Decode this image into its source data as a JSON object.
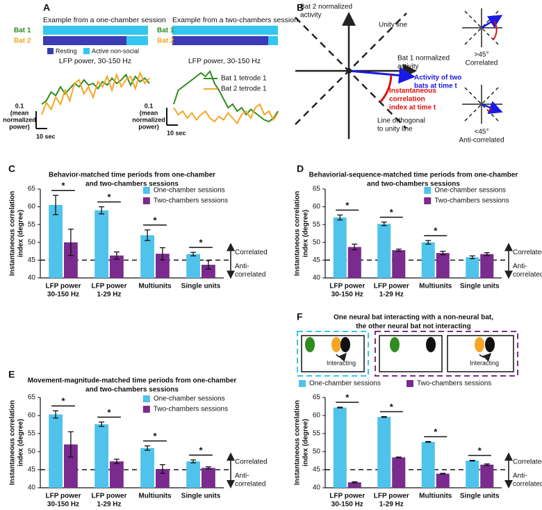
{
  "panel_a": {
    "label": "A",
    "titles": [
      "Example from a one-chamber session",
      "Example from a two-chambers session"
    ],
    "rows": [
      "Bat 1",
      "Bat 2"
    ],
    "legend": [
      "Resting",
      "Active non-social"
    ]
  },
  "panel_b": {
    "label": "B",
    "y_axis": [
      "Bat 2 normalized",
      "activity"
    ],
    "unity": "Unity line",
    "x_axis": [
      "Bat 1 normalized",
      "activity"
    ],
    "vector": [
      "Activity of two",
      "bats at time t"
    ],
    "index": [
      "Instantaneous",
      "correlation",
      "index at time t"
    ],
    "orthogonal": [
      "Line orthogonal",
      "to unity line"
    ],
    "insets": [
      {
        "angle": ">45°",
        "label": "Correlated"
      },
      {
        "angle": "<45°",
        "label": "Anti-correlated"
      }
    ]
  },
  "panel_f_illustration": {
    "labels": [
      "Interacting",
      "Interacting"
    ]
  },
  "chart_data": [
    {
      "type": "line",
      "title": "LFP power, 30-150 Hz",
      "scale_bar": {
        "value": 0.1,
        "label": "0.1",
        "unit": [
          "(mean",
          "normalized",
          "power)"
        ]
      },
      "time_scale": "10 sec",
      "series": [
        {
          "color": "#2e8b1e",
          "values": [
            0.08,
            0.1,
            0.15,
            0.13,
            0.18,
            0.14,
            0.17,
            0.2,
            0.18,
            0.22,
            0.19,
            0.2,
            0.17,
            0.21,
            0.19,
            0.23,
            0.2,
            0.22,
            0.25,
            0.19,
            0.24,
            0.21,
            0.23,
            0.2
          ]
        },
        {
          "color": "#f5a623",
          "values": [
            0.02,
            0.09,
            0.05,
            0.12,
            0.08,
            0.16,
            0.1,
            0.2,
            0.22,
            0.14,
            0.18,
            0.12,
            0.21,
            0.18,
            0.24,
            0.16,
            0.25,
            0.18,
            0.22,
            0.24,
            0.17,
            0.26,
            0.2,
            0.23
          ]
        }
      ]
    },
    {
      "type": "line",
      "title": "LFP power, 30-150 Hz",
      "scale_bar": {
        "value": 0.1,
        "label": "0.1",
        "unit": [
          "(mean",
          "normalized",
          "power)"
        ]
      },
      "time_scale": "10 sec",
      "series": [
        {
          "name": "Bat 1 tetrode 1",
          "color": "#2e8b1e",
          "values": [
            0.14,
            0.22,
            0.24,
            0.26,
            0.28,
            0.3,
            0.32,
            0.3,
            0.33,
            0.26,
            0.22,
            0.17,
            0.12,
            0.14,
            0.1,
            0.12,
            0.08,
            0.11,
            0.09,
            0.07,
            0.05,
            0.04,
            0.06,
            0.1
          ]
        },
        {
          "name": "Bat 2 tetrode 1",
          "color": "#f5a623",
          "values": [
            0.12,
            0.08,
            0.1,
            0.06,
            0.09,
            0.05,
            0.08,
            0.1,
            0.06,
            0.04,
            0.07,
            0.05,
            0.09,
            0.06,
            0.03,
            0.08,
            0.1,
            0.06,
            0.12,
            0.14,
            0.08,
            0.1,
            0.05,
            0.09
          ]
        }
      ]
    },
    {
      "type": "bar",
      "panel": "C",
      "title": [
        "Behavior-matched time periods from one-chamber",
        "and two-chambers sessions"
      ],
      "y_label": [
        "Instantaneous correlation",
        "index (degree)"
      ],
      "ylim": [
        40,
        65
      ],
      "yticks": [
        40,
        45,
        50,
        55,
        60,
        65
      ],
      "legend": "upper right",
      "categories": [
        [
          "LFP power",
          "30-150 Hz"
        ],
        [
          "LFP power",
          "1-29 Hz"
        ],
        [
          "Multiunits"
        ],
        [
          "Single units"
        ]
      ],
      "series": [
        {
          "name": "One-chamber sessions",
          "color": "#4fc3ec",
          "values": [
            60.5,
            59,
            52,
            46.7
          ],
          "errors": [
            2.7,
            1.0,
            1.5,
            0.5
          ]
        },
        {
          "name": "Two-chambers sessions",
          "color": "#7b2a8e",
          "values": [
            50,
            46.3,
            46.8,
            43.7
          ],
          "errors": [
            3.7,
            1.0,
            1.7,
            1.2
          ]
        }
      ],
      "significance": [
        "*",
        "*",
        "*",
        "*"
      ],
      "reference_line": 45,
      "correlated_label": "Correlated",
      "anti_correlated_label": [
        "Anti-",
        "correlated"
      ]
    },
    {
      "type": "bar",
      "panel": "D",
      "title": [
        "Behaviorial-sequence-matched time periods from one-chamber",
        "and two-chambers sessions"
      ],
      "y_label": [
        "Instantaneous correlation",
        "index (degree)"
      ],
      "ylim": [
        40,
        65
      ],
      "yticks": [
        40,
        45,
        50,
        55,
        60,
        65
      ],
      "legend": "upper right",
      "categories": [
        [
          "LFP power",
          "30-150 Hz"
        ],
        [
          "LFP power",
          "1-29 Hz"
        ],
        [
          "Multiunits"
        ],
        [
          "Single units"
        ]
      ],
      "series": [
        {
          "name": "One-chamber sessions",
          "color": "#4fc3ec",
          "values": [
            57,
            55.2,
            50,
            45.8
          ],
          "errors": [
            0.7,
            0.5,
            0.5,
            0.4
          ]
        },
        {
          "name": "Two-chambers sessions",
          "color": "#7b2a8e",
          "values": [
            48.7,
            47.8,
            47,
            46.7
          ],
          "errors": [
            0.8,
            0.3,
            0.5,
            0.4
          ]
        }
      ],
      "significance": [
        "*",
        "*",
        "*",
        null
      ],
      "reference_line": 45,
      "correlated_label": "Correlated",
      "anti_correlated_label": [
        "Anti-",
        "correlated"
      ]
    },
    {
      "type": "bar",
      "panel": "E",
      "title": [
        "Movement-magnitude-matched time periods from one-chamber",
        "and two-chambers sessions"
      ],
      "y_label": [
        "Instantaneous correlation",
        "index (degree)"
      ],
      "ylim": [
        40,
        65
      ],
      "yticks": [
        40,
        45,
        50,
        55,
        60,
        65
      ],
      "legend": "upper right",
      "categories": [
        [
          "LFP power",
          "30-150 Hz"
        ],
        [
          "LFP power",
          "1-29 Hz"
        ],
        [
          "Multiunits"
        ],
        [
          "Single units"
        ]
      ],
      "series": [
        {
          "name": "One-chamber sessions",
          "color": "#4fc3ec",
          "values": [
            60.3,
            57.6,
            51,
            47.3
          ],
          "errors": [
            1.0,
            0.6,
            0.6,
            0.4
          ]
        },
        {
          "name": "Two-chambers sessions",
          "color": "#7b2a8e",
          "values": [
            52,
            47.3,
            45.2,
            45.5
          ],
          "errors": [
            3.5,
            0.6,
            1.2,
            0.3
          ]
        }
      ],
      "significance": [
        "*",
        "*",
        "*",
        "*"
      ],
      "reference_line": 45,
      "correlated_label": "Correlated",
      "anti_correlated_label": [
        "Anti-",
        "correlated"
      ]
    },
    {
      "type": "bar",
      "panel": "F",
      "title": [
        "One neural bat interacting with a non-neural bat,",
        "the other neural bat not interacting"
      ],
      "y_label": [
        "Instantaneous correlation",
        "index (degree)"
      ],
      "ylim": [
        40,
        65
      ],
      "yticks": [
        40,
        45,
        50,
        55,
        60,
        65
      ],
      "legend": "top",
      "categories": [
        [
          "LFP power",
          "30-150 Hz"
        ],
        [
          "LFP power",
          "1-29 Hz"
        ],
        [
          "Multiunits"
        ],
        [
          "Single units"
        ]
      ],
      "series": [
        {
          "name": "One-chamber sessions",
          "color": "#4fc3ec",
          "values": [
            62.2,
            59.6,
            52.7,
            47.5
          ],
          "errors": [
            0.1,
            0.1,
            0.1,
            0.1
          ]
        },
        {
          "name": "Two-chambers sessions",
          "color": "#7b2a8e",
          "values": [
            41.5,
            48.4,
            43.9,
            46.4
          ],
          "errors": [
            0.15,
            0.1,
            0.1,
            0.2
          ]
        }
      ],
      "significance": [
        "*",
        "*",
        "*",
        "*"
      ],
      "reference_line": 45,
      "correlated_label": "Correlated",
      "anti_correlated_label": [
        "Anti-",
        "correlated"
      ]
    }
  ]
}
